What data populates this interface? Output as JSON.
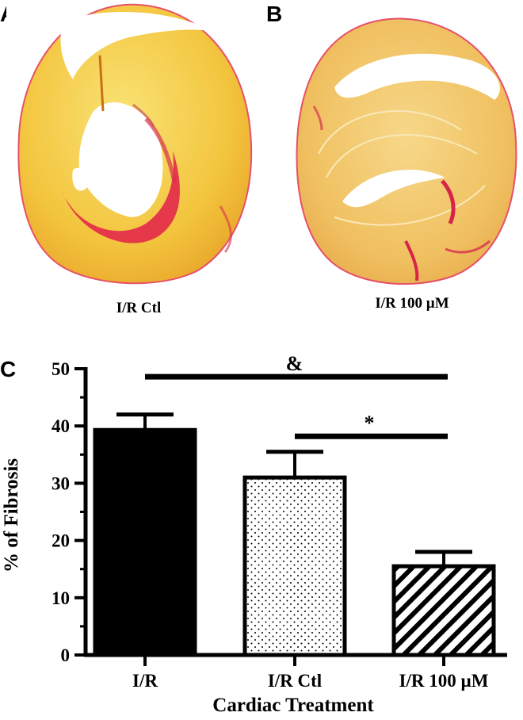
{
  "panels": {
    "a": {
      "letter": "A",
      "caption": "I/R Ctl"
    },
    "b": {
      "letter": "B",
      "caption": "I/R 100 µM"
    },
    "c": {
      "letter": "C"
    }
  },
  "colors": {
    "tissue": "#f2c23a",
    "tissue_light": "#f8e070",
    "fibrosis": "#e0204a",
    "bar_fill_ir": "#000000"
  },
  "chart_data": {
    "type": "bar",
    "categories": [
      "I/R",
      "I/R Ctl",
      "I/R 100 µM"
    ],
    "values": [
      39.3,
      31.0,
      15.5
    ],
    "errors": [
      2.7,
      4.5,
      2.5
    ],
    "patterns": [
      "solid",
      "dots",
      "diagonal-stripes"
    ],
    "xlabel": "Cardiac Treatment",
    "ylabel": "% of Fibrosis",
    "ylim": [
      0,
      50
    ],
    "yticks": [
      0,
      10,
      20,
      30,
      40,
      50
    ],
    "annotations": [
      {
        "symbol": "&",
        "from": "I/R",
        "to": "I/R 100 µM",
        "y": 48.6
      },
      {
        "symbol": "*",
        "from": "I/R Ctl",
        "to": "I/R 100 µM",
        "y": 38.2
      }
    ],
    "grid": false,
    "legend": "none"
  }
}
